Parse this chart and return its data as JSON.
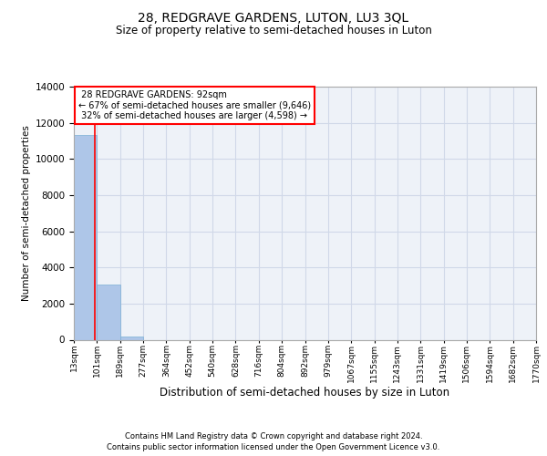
{
  "title": "28, REDGRAVE GARDENS, LUTON, LU3 3QL",
  "subtitle": "Size of property relative to semi-detached houses in Luton",
  "xlabel": "Distribution of semi-detached houses by size in Luton",
  "ylabel": "Number of semi-detached properties",
  "property_size": 92,
  "property_label": "28 REDGRAVE GARDENS: 92sqm",
  "pct_smaller": 67,
  "n_smaller": 9646,
  "pct_larger": 32,
  "n_larger": 4598,
  "bin_edges": [
    13,
    101,
    189,
    277,
    364,
    452,
    540,
    628,
    716,
    804,
    892,
    979,
    1067,
    1155,
    1243,
    1331,
    1419,
    1506,
    1594,
    1682,
    1770
  ],
  "bin_labels": [
    "13sqm",
    "101sqm",
    "189sqm",
    "277sqm",
    "364sqm",
    "452sqm",
    "540sqm",
    "628sqm",
    "716sqm",
    "804sqm",
    "892sqm",
    "979sqm",
    "1067sqm",
    "1155sqm",
    "1243sqm",
    "1331sqm",
    "1419sqm",
    "1506sqm",
    "1594sqm",
    "1682sqm",
    "1770sqm"
  ],
  "bar_heights": [
    11350,
    3050,
    200,
    0,
    0,
    0,
    0,
    0,
    0,
    0,
    0,
    0,
    0,
    0,
    0,
    0,
    0,
    0,
    0,
    0
  ],
  "bar_color": "#aec6e8",
  "bar_edge_color": "#7bafd4",
  "grid_color": "#d0d8e8",
  "background_color": "#eef2f8",
  "annotation_box_color": "#ff0000",
  "property_line_color": "#ff0000",
  "ylim": [
    0,
    14000
  ],
  "yticks": [
    0,
    2000,
    4000,
    6000,
    8000,
    10000,
    12000,
    14000
  ],
  "footer_line1": "Contains HM Land Registry data © Crown copyright and database right 2024.",
  "footer_line2": "Contains public sector information licensed under the Open Government Licence v3.0."
}
